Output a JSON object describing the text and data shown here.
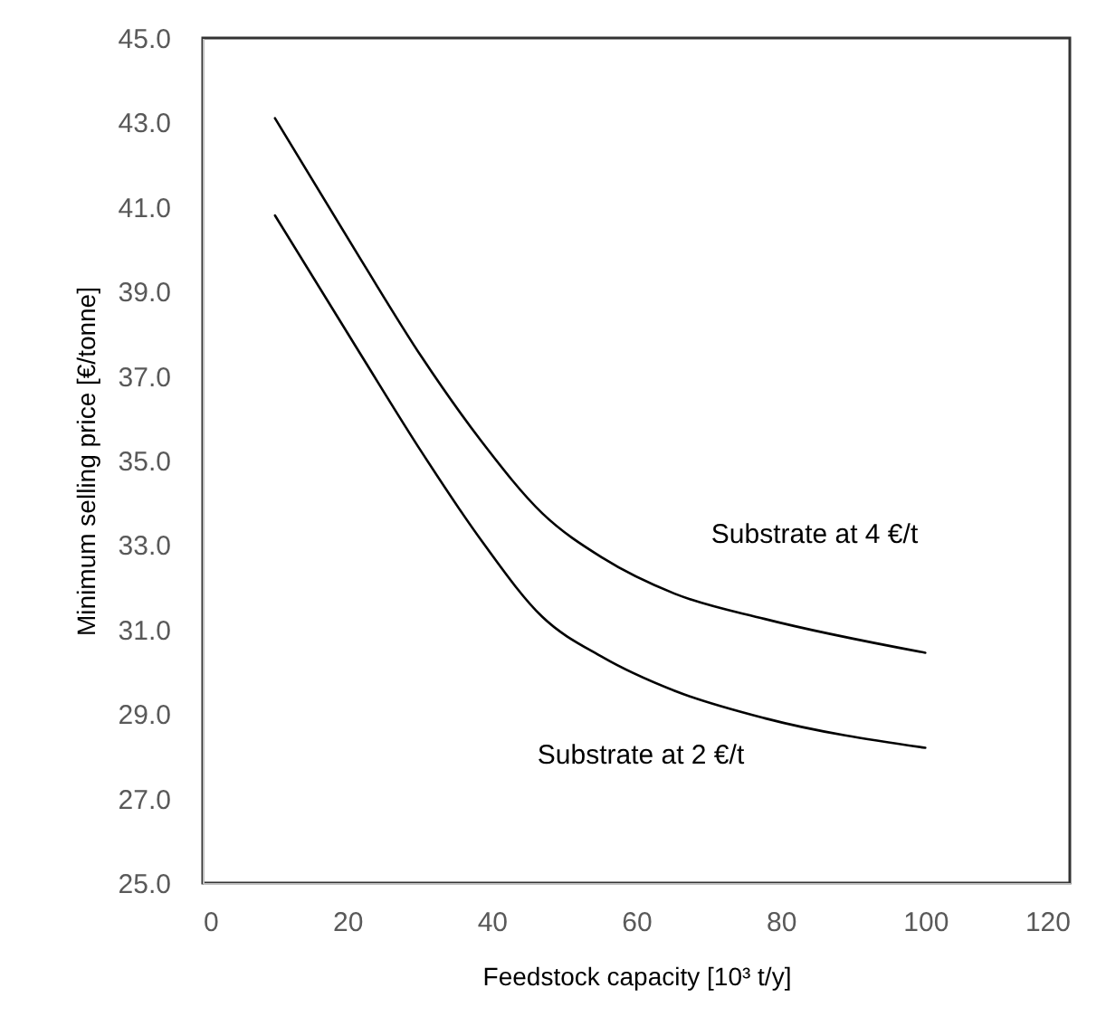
{
  "chart_data": {
    "type": "line",
    "xlabel": "Feedstock capacity [10³ t/y]",
    "ylabel": "Minimum selling price [€/tonne]",
    "x": [
      10,
      21.9,
      30.3,
      38.6,
      47,
      55.3,
      65.3,
      77.8,
      100
    ],
    "series": [
      {
        "color": "#000000",
        "values": [
          43.1,
          39.75,
          37.45,
          35.45,
          33.75,
          32.7,
          31.85,
          31.25,
          30.45
        ]
      },
      {
        "color": "#000000",
        "values": [
          40.8,
          37.5,
          35.2,
          33.1,
          31.3,
          30.35,
          29.55,
          28.9,
          28.2
        ]
      }
    ],
    "annotations": [
      "Substrate at 4 €/t",
      "Substrate at 2 €/t"
    ],
    "xlim": [
      0,
      120
    ],
    "xticks": [
      0,
      20,
      40,
      60,
      80,
      100,
      120
    ],
    "ylim": [
      25,
      45
    ],
    "yticks": [
      {
        "value": 25,
        "label": "25.0"
      },
      {
        "value": 27,
        "label": "27.0"
      },
      {
        "value": 29,
        "label": "29.0"
      },
      {
        "value": 31,
        "label": "31.0"
      },
      {
        "value": 33,
        "label": "33.0"
      },
      {
        "value": 35,
        "label": "35.0"
      },
      {
        "value": 37,
        "label": "37.0"
      },
      {
        "value": 39,
        "label": "39.0"
      },
      {
        "value": 41,
        "label": "41.0"
      },
      {
        "value": 43,
        "label": "43.0"
      },
      {
        "value": 45,
        "label": "45.0"
      }
    ],
    "grid": false,
    "marker": "none",
    "line_style": "solid"
  }
}
